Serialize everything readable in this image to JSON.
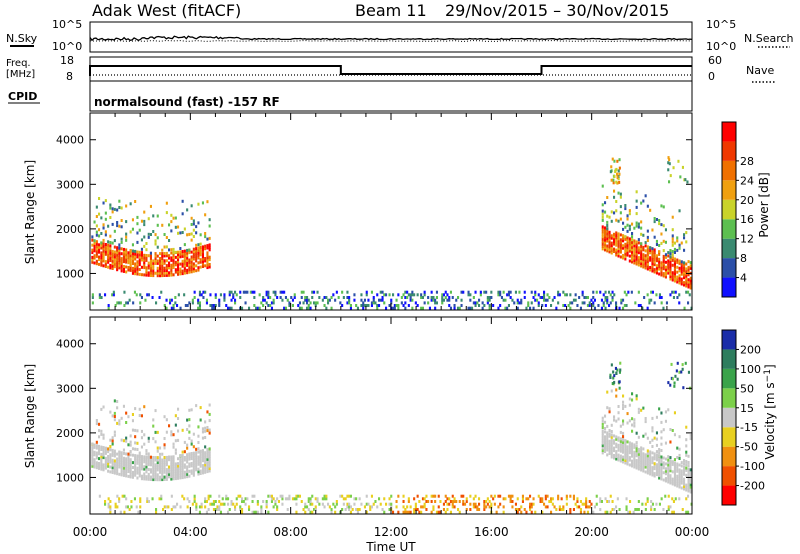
{
  "header": {
    "station": "Adak West (fitACF)",
    "beam": "Beam 11",
    "date_range": "29/Nov/2015 – 30/Nov/2015"
  },
  "status_panels": {
    "nsky_label": "N.Sky",
    "nsearch_label": "N.Search",
    "freq_label_1": "Freq.",
    "freq_label_2": "[MHz]",
    "nave_label": "Nave",
    "cpid_label": "CPID",
    "noise_ticks": [
      "10^5",
      "10^0"
    ],
    "freq_ticks": [
      "18",
      "8"
    ],
    "nave_ticks": [
      "60",
      "0"
    ],
    "cpid_text": "normalsound (fast) -157 RF"
  },
  "colors": {
    "power_scale": [
      "#1010ff",
      "#2b4fa8",
      "#3a8a70",
      "#5cbf50",
      "#c9d32a",
      "#f0a010",
      "#f07000",
      "#f03800",
      "#ff0000"
    ],
    "velocity_scale": [
      "#1a2da8",
      "#2e7d5e",
      "#3aa34a",
      "#7cd04a",
      "#c8c8c8",
      "#e8d020",
      "#f09010",
      "#f05000",
      "#ff0000"
    ]
  },
  "chart_data": [
    {
      "type": "heatmap",
      "name": "power",
      "ylabel": "Slant Range [km]",
      "xlabel": "Time UT",
      "x_ticks": [
        "00:00",
        "04:00",
        "08:00",
        "12:00",
        "16:00",
        "20:00",
        "00:00"
      ],
      "xlim_hours": [
        0,
        24
      ],
      "ylim": [
        180,
        4600
      ],
      "y_ticks": [
        1000,
        2000,
        3000,
        4000
      ],
      "colorbar_label": "Power [dB]",
      "colorbar_ticks": [
        4,
        8,
        12,
        16,
        20,
        24,
        28
      ],
      "colorbar_range": [
        0,
        32
      ]
    },
    {
      "type": "heatmap",
      "name": "velocity",
      "ylabel": "Slant Range [km]",
      "xlabel": "Time UT",
      "x_ticks": [
        "00:00",
        "04:00",
        "08:00",
        "12:00",
        "16:00",
        "20:00",
        "00:00"
      ],
      "xlim_hours": [
        0,
        24
      ],
      "ylim": [
        180,
        4600
      ],
      "y_ticks": [
        1000,
        2000,
        3000,
        4000
      ],
      "colorbar_label": "Velocity [m s-1]",
      "colorbar_ticks": [
        "200",
        "100",
        "50",
        "15",
        "-15",
        "-50",
        "-100",
        "-200"
      ]
    }
  ],
  "axes": {
    "xlabel": "Time UT"
  }
}
